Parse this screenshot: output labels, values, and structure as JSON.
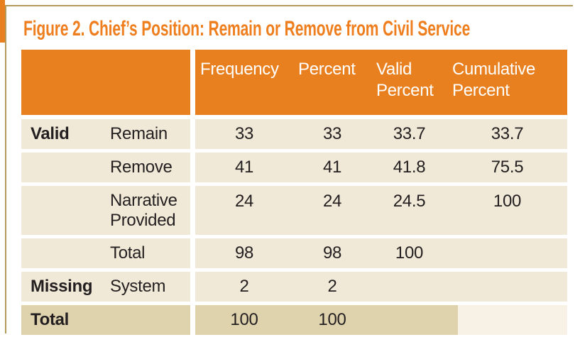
{
  "figure_title": "Figure 2. Chief’s Position: Remain or Remove from Civil Service",
  "table": {
    "headers": {
      "frequency": "Frequency",
      "percent": "Percent",
      "valid_percent": "Valid Percent",
      "cumulative_percent": "Cumulative Percent"
    },
    "rows": [
      {
        "category": "Valid",
        "label": "Remain",
        "frequency": "33",
        "percent": "33",
        "valid_percent": "33.7",
        "cumulative_percent": "33.7"
      },
      {
        "category": "",
        "label": "Remove",
        "frequency": "41",
        "percent": "41",
        "valid_percent": "41.8",
        "cumulative_percent": "75.5"
      },
      {
        "category": "",
        "label": "Narrative Provided",
        "frequency": "24",
        "percent": "24",
        "valid_percent": "24.5",
        "cumulative_percent": "100"
      },
      {
        "category": "",
        "label": "Total",
        "frequency": "98",
        "percent": "98",
        "valid_percent": "100",
        "cumulative_percent": ""
      },
      {
        "category": "Missing",
        "label": "System",
        "frequency": "2",
        "percent": "2",
        "valid_percent": "",
        "cumulative_percent": ""
      },
      {
        "category": "Total",
        "label": "",
        "frequency": "100",
        "percent": "100",
        "valid_percent": "",
        "cumulative_percent": ""
      }
    ]
  },
  "colors": {
    "accent_orange": "#E8801F",
    "title_orange": "#EE7E1E",
    "frame_tan": "#B49B5B",
    "row_beige": "#F0E9D7",
    "total_row_beige": "#DFD3AE",
    "total_row_cream": "#F7F2E5",
    "header_text": "#FFFFFF",
    "body_text": "#231F20"
  }
}
